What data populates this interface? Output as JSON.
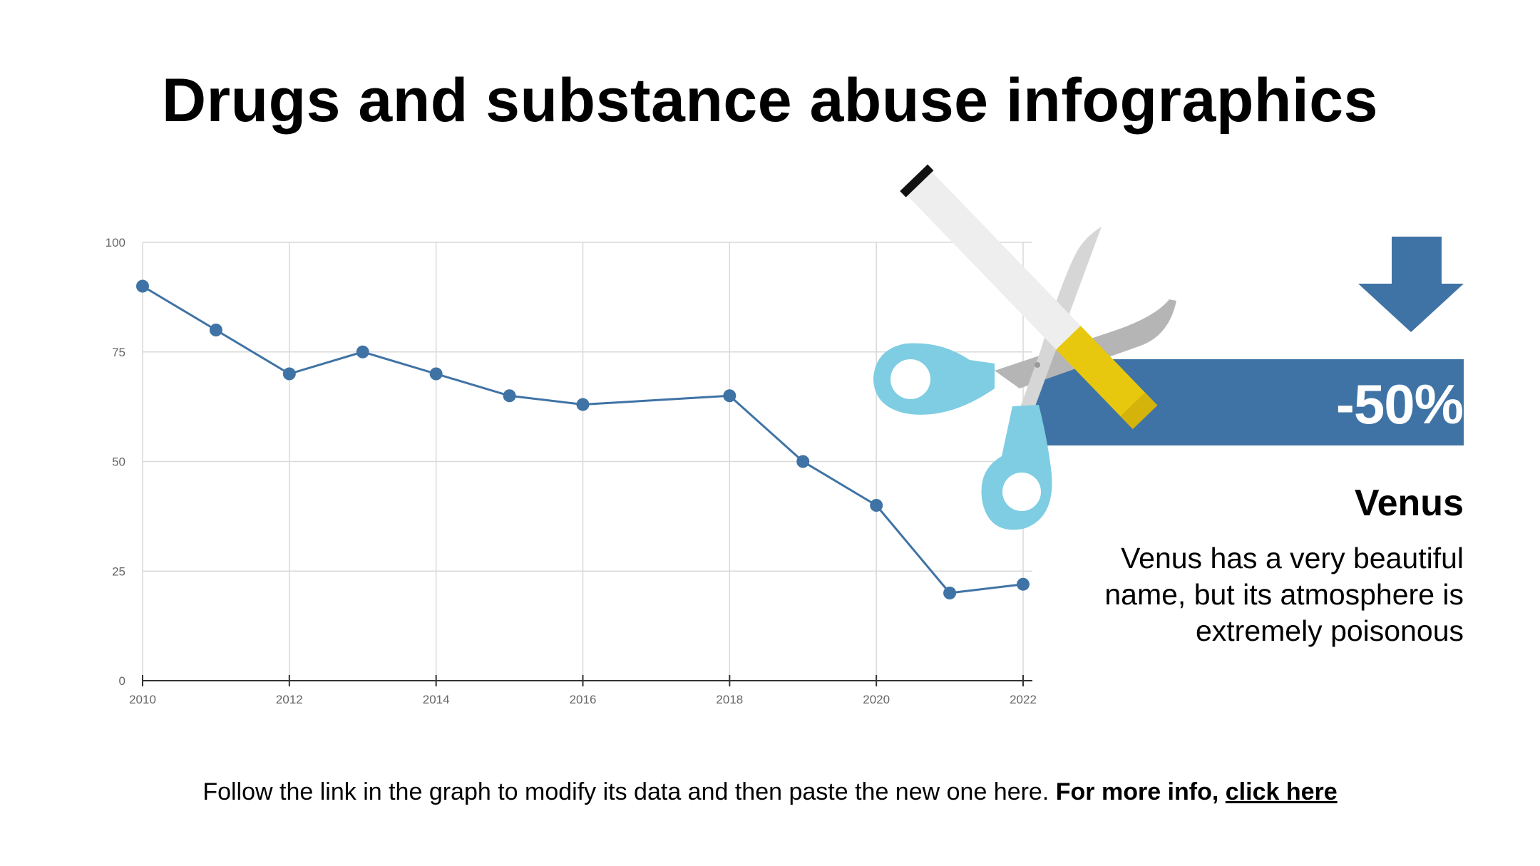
{
  "title": "Drugs and substance abuse infographics",
  "chart_data": {
    "type": "line",
    "title": "",
    "xlabel": "",
    "ylabel": "",
    "x": [
      2010,
      2011,
      2012,
      2013,
      2014,
      2015,
      2016,
      2018,
      2019,
      2020,
      2021,
      2022
    ],
    "values": [
      90,
      80,
      70,
      75,
      70,
      65,
      63,
      65,
      50,
      40,
      20,
      22
    ],
    "xlim": [
      2010,
      2022
    ],
    "ylim": [
      0,
      100
    ],
    "x_ticks": [
      "2010",
      "2012",
      "2014",
      "2016",
      "2018",
      "2020",
      "2022"
    ],
    "y_ticks": [
      "0",
      "25",
      "50",
      "75",
      "100"
    ],
    "grid": true,
    "series_color": "#3f73a5"
  },
  "badge": {
    "value": "-50%",
    "color": "#3f73a5"
  },
  "info": {
    "title": "Venus",
    "description": "Venus has a very beautiful name, but its atmosphere is extremely poisonous"
  },
  "footer": {
    "text": "Follow the link in the graph to modify its data and then paste the new one here.",
    "bold_text": "For more info,",
    "link_text": "click here"
  },
  "icons": {
    "arrow": "arrow-down-icon",
    "scissors": "scissors-icon",
    "cigarette": "cigarette-icon"
  }
}
